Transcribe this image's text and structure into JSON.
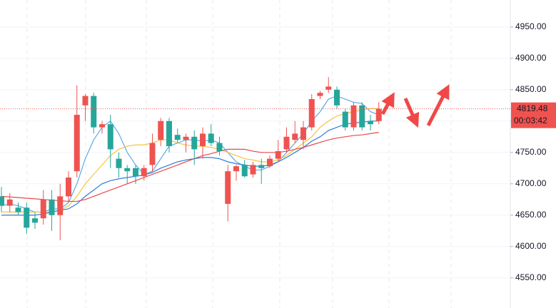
{
  "chart_data": {
    "type": "candlestick",
    "up_color": "#ef5350",
    "down_color": "#26a69a",
    "open": [
      4680,
      4665,
      4662,
      4662,
      4645,
      4645,
      4675,
      4650,
      4680,
      4720,
      4825,
      4840,
      4790,
      4795,
      4740,
      4725,
      4725,
      4712,
      4730,
      4770,
      4800,
      4778,
      4770,
      4775,
      4760,
      4780,
      4765,
      4668,
      4720,
      4730,
      4715,
      4730,
      4728,
      4740,
      4755,
      4770,
      4770,
      4790,
      4840,
      4850,
      4850,
      4815,
      4790,
      4825,
      4800,
      4800
    ],
    "high": [
      4695,
      4685,
      4670,
      4670,
      4655,
      4690,
      4690,
      4700,
      4720,
      4857,
      4843,
      4845,
      4800,
      4810,
      4750,
      4730,
      4730,
      4730,
      4780,
      4805,
      4805,
      4788,
      4780,
      4785,
      4790,
      4795,
      4775,
      4730,
      4730,
      4738,
      4735,
      4740,
      4745,
      4770,
      4790,
      4800,
      4800,
      4843,
      4848,
      4870,
      4855,
      4820,
      4830,
      4830,
      4810,
      4830
    ],
    "low": [
      4655,
      4655,
      4650,
      4620,
      4628,
      4635,
      4625,
      4610,
      4670,
      4710,
      4800,
      4780,
      4780,
      4725,
      4710,
      4700,
      4700,
      4705,
      4720,
      4760,
      4750,
      4765,
      4750,
      4730,
      4740,
      4760,
      4745,
      4640,
      4705,
      4710,
      4710,
      4700,
      4725,
      4735,
      4750,
      4765,
      4755,
      4785,
      4835,
      4845,
      4820,
      4785,
      4785,
      4785,
      4785,
      4795
    ],
    "close": [
      4665,
      4675,
      4655,
      4630,
      4638,
      4675,
      4650,
      4680,
      4710,
      4810,
      4840,
      4790,
      4795,
      4755,
      4725,
      4720,
      4712,
      4725,
      4765,
      4800,
      4760,
      4770,
      4775,
      4755,
      4780,
      4765,
      4752,
      4720,
      4728,
      4712,
      4730,
      4725,
      4740,
      4752,
      4775,
      4780,
      4790,
      4835,
      4845,
      4855,
      4825,
      4790,
      4825,
      4790,
      4795,
      4819.48
    ],
    "lines": [
      {
        "color": "#5fa8e8",
        "values": [
          4665,
          4668,
          4665,
          4660,
          4655,
          4655,
          4660,
          4660,
          4670,
          4700,
          4740,
          4770,
          4790,
          4800,
          4780,
          4750,
          4730,
          4715,
          4720,
          4740,
          4760,
          4765,
          4770,
          4770,
          4768,
          4770,
          4765,
          4750,
          4735,
          4728,
          4722,
          4722,
          4728,
          4735,
          4750,
          4765,
          4780,
          4800,
          4815,
          4835,
          4840,
          4835,
          4830,
          4828,
          4815,
          4810
        ]
      },
      {
        "color": "#f5c542",
        "values": [
          4655,
          4655,
          4655,
          4655,
          4655,
          4655,
          4655,
          4658,
          4665,
          4680,
          4700,
          4715,
          4730,
          4745,
          4755,
          4760,
          4762,
          4762,
          4765,
          4770,
          4770,
          4765,
          4762,
          4760,
          4760,
          4758,
          4755,
          4750,
          4745,
          4740,
          4738,
          4735,
          4735,
          4738,
          4745,
          4755,
          4765,
          4775,
          4790,
          4800,
          4808,
          4812,
          4815,
          4818,
          4820,
          4820
        ]
      },
      {
        "color": "#2f7ed8",
        "values": [
          4650,
          4650,
          4650,
          4650,
          4650,
          4652,
          4655,
          4658,
          4660,
          4668,
          4680,
          4690,
          4700,
          4705,
          4708,
          4710,
          4712,
          4714,
          4718,
          4725,
          4730,
          4735,
          4738,
          4740,
          4742,
          4742,
          4740,
          4735,
          4732,
          4730,
          4728,
          4728,
          4730,
          4735,
          4742,
          4750,
          4758,
          4768,
          4775,
          4785,
          4790,
          4795,
          4797,
          4798,
          4800,
          4800
        ]
      },
      {
        "color": "#e84a4a",
        "values": [
          4680,
          4679,
          4678,
          4677,
          4676,
          4675,
          4674,
          4673,
          4672,
          4672,
          4675,
          4680,
          4685,
          4690,
          4695,
          4700,
          4705,
          4710,
          4715,
          4720,
          4725,
          4730,
          4735,
          4740,
          4745,
          4748,
          4752,
          4755,
          4755,
          4755,
          4752,
          4750,
          4750,
          4750,
          4752,
          4755,
          4758,
          4762,
          4766,
          4770,
          4773,
          4775,
          4777,
          4778,
          4780,
          4782
        ]
      }
    ],
    "ylim": [
      4502,
      4993
    ],
    "yticks": [
      {
        "value": 4550,
        "label": "4550.00"
      },
      {
        "value": 4600,
        "label": "4600.00"
      },
      {
        "value": 4650,
        "label": "4650.00"
      },
      {
        "value": 4700,
        "label": "4700.00"
      },
      {
        "value": 4750,
        "label": "4750.00"
      },
      {
        "value": 4800,
        "label": "4800.00"
      },
      {
        "value": 4850,
        "label": "4850.00"
      },
      {
        "value": 4900,
        "label": "4900.00"
      },
      {
        "value": 4950,
        "label": "4950.00"
      }
    ],
    "grid": true,
    "last_price": {
      "value": 4819.48,
      "label": "4819.48"
    },
    "countdown": "00:03:42"
  }
}
